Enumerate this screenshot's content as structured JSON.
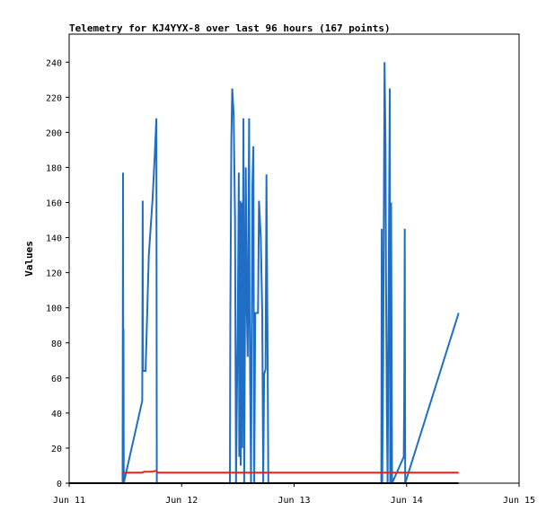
{
  "chart_data": {
    "type": "line",
    "title": "Telemetry for KJ4YYX-8 over last 96 hours (167 points)",
    "ylabel": "Values",
    "xlabel": "",
    "x_unit": "hours since Jun 11 00:00",
    "xlim": [
      0,
      96
    ],
    "ylim": [
      0,
      256
    ],
    "x_ticks": [
      {
        "label": "Jun 11",
        "value": 0
      },
      {
        "label": "Jun 12",
        "value": 24
      },
      {
        "label": "Jun 13",
        "value": 48
      },
      {
        "label": "Jun 14",
        "value": 72
      },
      {
        "label": "Jun 15",
        "value": 96
      }
    ],
    "y_ticks": [
      0,
      20,
      40,
      60,
      80,
      100,
      120,
      140,
      160,
      180,
      200,
      220,
      240
    ],
    "grid": false,
    "series": [
      {
        "color": "#1f6ec4",
        "points": [
          [
            11.4,
            0
          ],
          [
            11.5,
            177
          ],
          [
            11.55,
            2
          ],
          [
            11.6,
            88
          ],
          [
            11.65,
            0
          ],
          [
            15.6,
            47
          ],
          [
            15.7,
            161
          ],
          [
            15.75,
            64
          ],
          [
            16.3,
            64
          ],
          [
            17.0,
            130
          ],
          [
            17.8,
            162
          ],
          [
            18.3,
            189
          ],
          [
            18.6,
            208
          ],
          [
            18.7,
            0
          ],
          [
            34.3,
            0
          ],
          [
            34.4,
            97
          ],
          [
            34.6,
            195
          ],
          [
            34.8,
            225
          ],
          [
            35.1,
            210
          ],
          [
            35.4,
            150
          ],
          [
            35.6,
            0
          ],
          [
            36.0,
            100
          ],
          [
            36.2,
            177
          ],
          [
            36.3,
            15
          ],
          [
            36.5,
            161
          ],
          [
            36.6,
            10
          ],
          [
            36.8,
            160
          ],
          [
            36.9,
            20
          ],
          [
            37.2,
            208
          ],
          [
            37.35,
            0
          ],
          [
            37.7,
            180
          ],
          [
            37.9,
            100
          ],
          [
            38.1,
            72
          ],
          [
            38.4,
            208
          ],
          [
            38.5,
            100
          ],
          [
            38.8,
            0
          ],
          [
            39.1,
            170
          ],
          [
            39.3,
            192
          ],
          [
            39.5,
            0
          ],
          [
            39.7,
            97
          ],
          [
            40.3,
            97
          ],
          [
            40.5,
            161
          ],
          [
            40.9,
            140
          ],
          [
            41.2,
            97
          ],
          [
            41.4,
            0
          ],
          [
            41.6,
            62
          ],
          [
            41.9,
            65
          ],
          [
            42.1,
            176
          ],
          [
            42.3,
            88
          ],
          [
            42.5,
            0
          ],
          [
            66.6,
            0
          ],
          [
            66.7,
            145
          ],
          [
            66.8,
            0
          ],
          [
            67.0,
            72
          ],
          [
            67.3,
            240
          ],
          [
            67.5,
            192
          ],
          [
            67.6,
            120
          ],
          [
            67.8,
            40
          ],
          [
            67.95,
            0
          ],
          [
            68.4,
            225
          ],
          [
            68.5,
            0
          ],
          [
            68.7,
            160
          ],
          [
            68.9,
            0
          ],
          [
            71.4,
            15
          ],
          [
            71.5,
            48
          ],
          [
            71.6,
            145
          ],
          [
            71.7,
            0
          ],
          [
            83.1,
            97
          ]
        ]
      },
      {
        "color": "#e8231e",
        "points": [
          [
            11.4,
            6
          ],
          [
            15.5,
            6
          ],
          [
            16.0,
            6.5
          ],
          [
            17.5,
            6.5
          ],
          [
            18.5,
            7
          ],
          [
            19.0,
            6
          ],
          [
            34.0,
            6
          ],
          [
            50.0,
            6
          ],
          [
            66.0,
            6
          ],
          [
            72.0,
            6
          ],
          [
            83.1,
            6
          ]
        ]
      },
      {
        "color": "#000000",
        "points": [
          [
            0,
            0
          ],
          [
            83.1,
            0
          ]
        ]
      }
    ]
  }
}
